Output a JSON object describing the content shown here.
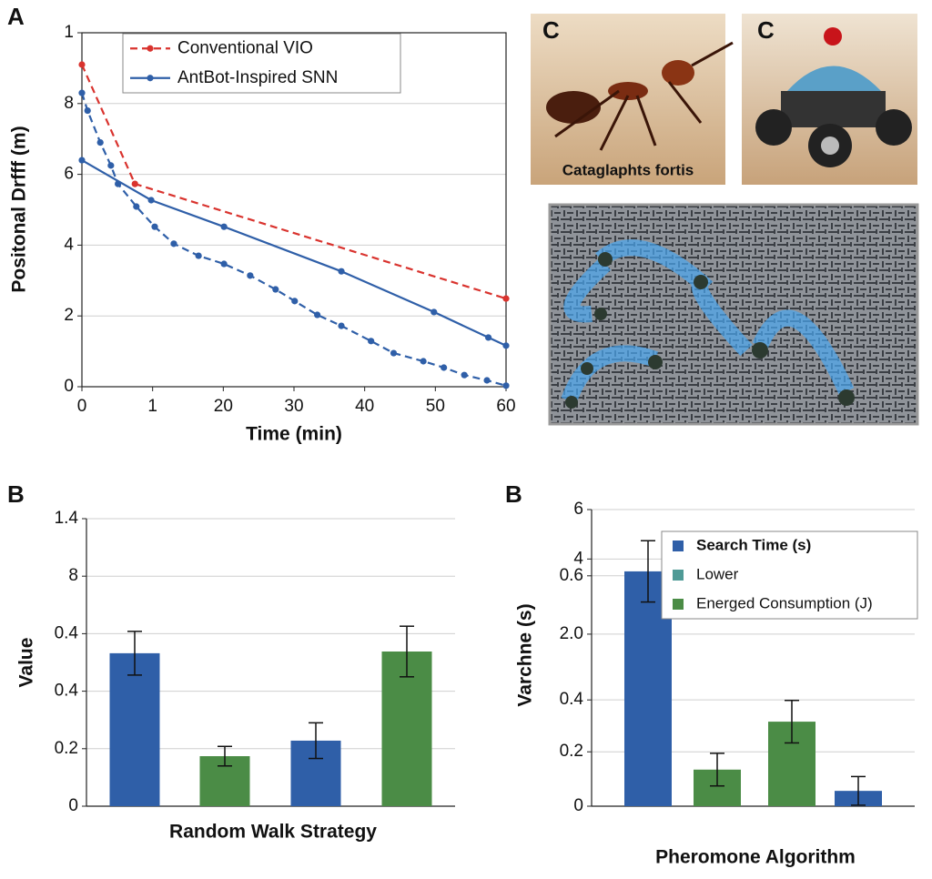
{
  "chart_data": [
    {
      "type": "line",
      "panel_label": "A",
      "xlabel": "Time (min)",
      "ylabel": "Positonal Drfff (m)",
      "xlim": [
        0,
        60
      ],
      "xticks": [
        0,
        {
          "value": 10,
          "label": "1"
        },
        20,
        30,
        40,
        50,
        60
      ],
      "ylim": [
        0,
        10
      ],
      "yticks": [
        0,
        2,
        4,
        6,
        8,
        {
          "value": 10,
          "label": "1"
        }
      ],
      "grid": true,
      "legend": "top",
      "series": [
        {
          "name": "Conventional VIO",
          "color": "#d9332e",
          "dashed": true,
          "x": [
            0,
            7.5,
            60
          ],
          "values": [
            9.1,
            5.73,
            2.49
          ]
        },
        {
          "name": "AntBot-Inspired SNN",
          "color": "#2f5fa8",
          "dashed": false,
          "x": [
            0,
            9.8,
            20.1,
            36.7,
            49.8,
            57.5,
            60
          ],
          "values": [
            6.4,
            5.27,
            4.52,
            3.26,
            2.11,
            1.39,
            1.16
          ]
        },
        {
          "color": "#2f5fa8",
          "dashed": true,
          "x": [
            0,
            0.8,
            2.6,
            4.1,
            5.1,
            7.7,
            10.3,
            13,
            16.5,
            20.1,
            23.8,
            27.4,
            30.1,
            33.3,
            36.7,
            40.9,
            44.1,
            48.3,
            51.2,
            54.1,
            57.3,
            60
          ],
          "values": [
            8.3,
            7.8,
            6.9,
            6.25,
            5.73,
            5.09,
            4.52,
            4.04,
            3.7,
            3.47,
            3.14,
            2.75,
            2.42,
            2.03,
            1.72,
            1.29,
            0.95,
            0.72,
            0.54,
            0.33,
            0.18,
            0.03
          ]
        }
      ]
    },
    {
      "type": "bar",
      "panel_label": "B",
      "xlabel": "Random Walk Strategy",
      "ylabel": "Value",
      "ylim": [
        0,
        5
      ],
      "yticks": [
        0,
        {
          "value": 1,
          "label": "0.2"
        },
        {
          "value": 2,
          "label": "0.4"
        },
        {
          "value": 3,
          "label": "0.4"
        },
        {
          "value": 4,
          "label": "8"
        },
        {
          "value": 5,
          "label": "1.4"
        }
      ],
      "grid": true,
      "categories": [
        null,
        null,
        null,
        null
      ],
      "values": [
        2.66,
        0.87,
        1.14,
        2.69
      ],
      "errors": [
        0.38,
        0.17,
        0.31,
        0.44
      ],
      "colors": [
        "#2f5fa8",
        "#4b8c46",
        "#2f5fa8",
        "#4b8c46"
      ]
    },
    {
      "type": "bar",
      "panel_label": "B",
      "xlabel": "Pheromone Algorithm",
      "ylabel": "Varchne (s)",
      "ylim": [
        0,
        6
      ],
      "yticks": [
        0,
        {
          "value": 1.1,
          "label": "0.2"
        },
        {
          "value": 2.15,
          "label": "0.4"
        },
        {
          "value": 3.48,
          "label": "2.0"
        },
        {
          "value": 4.66,
          "label": "0.6"
        },
        {
          "value": 5,
          "label": "4"
        },
        6
      ],
      "grid": true,
      "legend": "top-right",
      "categories": [
        null,
        null,
        null,
        null
      ],
      "series": [
        {
          "name": "Search Time (s)",
          "color": "#2f5fa8",
          "values": [
            4.75,
            null,
            null,
            0.31
          ],
          "errors": [
            0.62,
            null,
            null,
            0.29
          ]
        },
        {
          "name": "Lower",
          "color": "#4f9a96",
          "values": [
            null,
            null,
            null,
            null
          ],
          "errors": [
            null,
            null,
            null,
            null
          ]
        },
        {
          "name": "Energed Consumption (J)",
          "color": "#4b8c46",
          "values": [
            null,
            0.74,
            1.71,
            null
          ],
          "errors": [
            null,
            0.33,
            0.43,
            null
          ]
        }
      ]
    }
  ],
  "images": [
    {
      "label": "C",
      "caption": "Cataglaphts fortis"
    },
    {
      "label": "C"
    }
  ]
}
